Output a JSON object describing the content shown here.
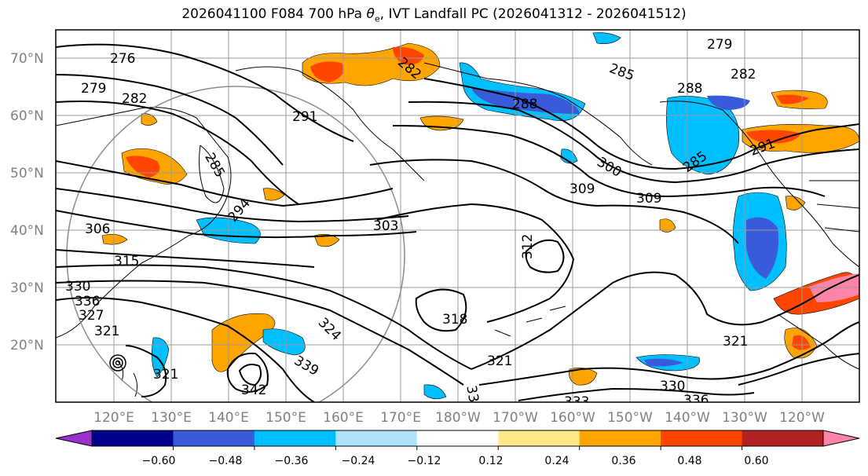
{
  "title_main": "2026041100 F084 700 hPa ",
  "title_sym": "θ",
  "title_sub": "e",
  "title_rest": ", IVT Landfall PC (2026041312 - 2026041512)",
  "map": {
    "lat_labels": [
      "70°N",
      "60°N",
      "50°N",
      "40°N",
      "30°N",
      "20°N"
    ],
    "lon_labels": [
      "120°E",
      "130°E",
      "140°E",
      "150°E",
      "160°E",
      "170°E",
      "180°W",
      "170°W",
      "160°W",
      "150°W",
      "140°W",
      "130°W",
      "120°W"
    ],
    "contour_levels": [
      "276",
      "279",
      "282",
      "285",
      "288",
      "291",
      "285",
      "288",
      "282",
      "279",
      "282",
      "285",
      "291",
      "300",
      "303",
      "306",
      "309",
      "309",
      "312",
      "315",
      "318",
      "321",
      "324",
      "327",
      "330",
      "333",
      "336",
      "339",
      "342",
      "330",
      "336",
      "321",
      "318",
      "321",
      "312",
      "300",
      "294"
    ]
  },
  "colorbar": {
    "colors": [
      "#9932cc",
      "#00008b",
      "#3a5bd9",
      "#00bfff",
      "#aee1fa",
      "#ffffff",
      "#ffe88a",
      "#ffa500",
      "#ff4500",
      "#b22222",
      "#ff85a8"
    ],
    "tick_labels": [
      "−0.60",
      "−0.48",
      "−0.36",
      "−0.24",
      "−0.12",
      "0.12",
      "0.24",
      "0.36",
      "0.48",
      "0.60"
    ]
  }
}
